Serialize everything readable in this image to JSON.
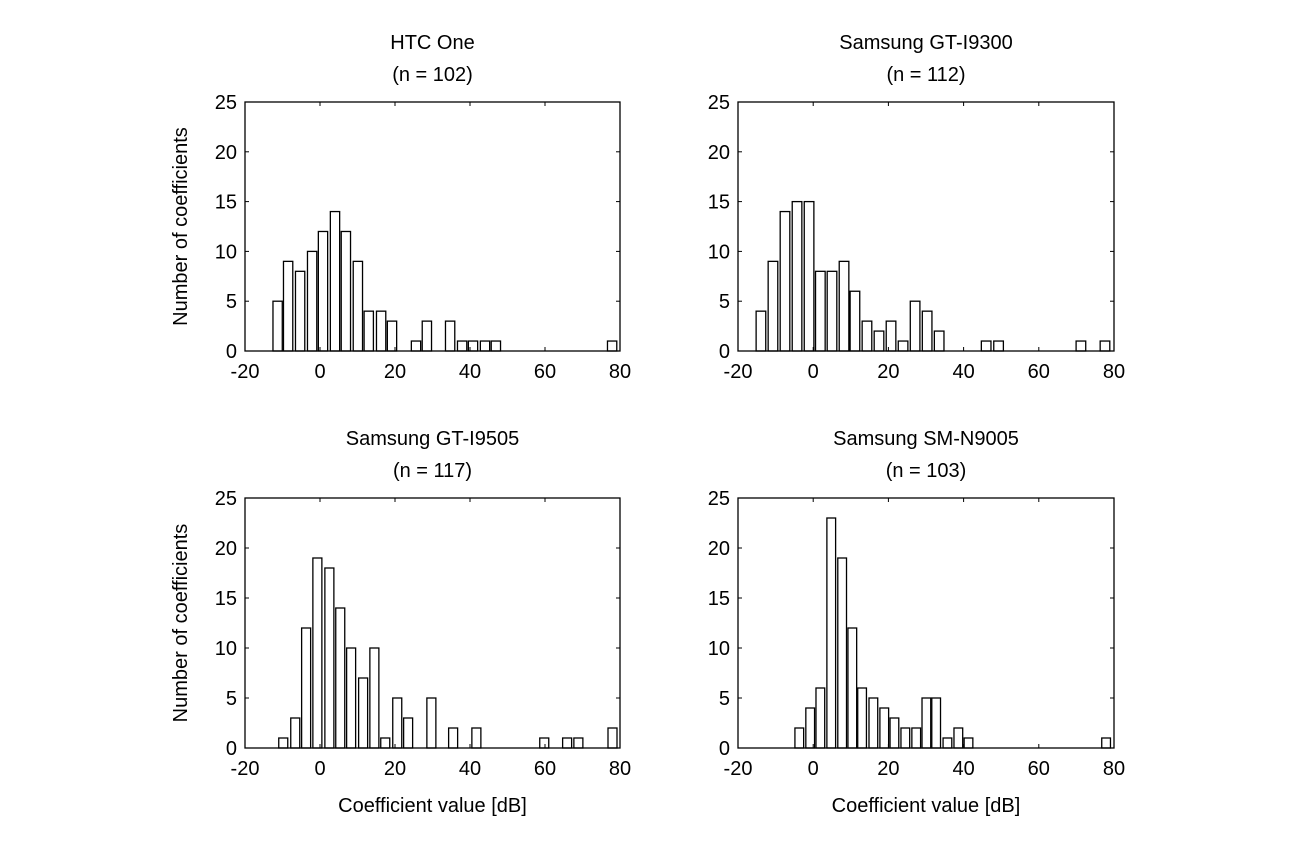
{
  "chart_data": [
    {
      "type": "bar",
      "title": "HTC One",
      "subtitle": "(n = 102)",
      "xlabel": "",
      "ylabel": "Number of coefficients",
      "xlim": [
        -20,
        80
      ],
      "ylim": [
        0,
        25
      ],
      "xticks": [
        "-20",
        "0",
        "20",
        "40",
        "60",
        "80"
      ],
      "yticks": [
        "0",
        "5",
        "10",
        "15",
        "20",
        "25"
      ],
      "bin_width": 3.1,
      "x": [
        -11.3,
        -8.5,
        -5.3,
        -2.1,
        0.8,
        4.0,
        6.9,
        10.1,
        13.0,
        16.3,
        19.2,
        25.6,
        28.5,
        34.7,
        37.9,
        40.8,
        44.0,
        46.9,
        77.9
      ],
      "values": [
        5,
        9,
        8,
        10,
        12,
        14,
        12,
        9,
        4,
        4,
        3,
        1,
        3,
        3,
        1,
        1,
        1,
        1,
        1
      ]
    },
    {
      "type": "bar",
      "title": "Samsung GT-I9300",
      "subtitle": "(n = 112)",
      "xlabel": "",
      "ylabel": "",
      "xlim": [
        -20,
        80
      ],
      "ylim": [
        0,
        25
      ],
      "xticks": [
        "-20",
        "0",
        "20",
        "40",
        "60",
        "80"
      ],
      "yticks": [
        "0",
        "5",
        "10",
        "15",
        "20",
        "25"
      ],
      "bin_width": 3.2,
      "x": [
        -13.9,
        -10.7,
        -7.5,
        -4.3,
        -1.1,
        1.9,
        5.0,
        8.2,
        11.1,
        14.3,
        17.5,
        20.7,
        23.9,
        27.1,
        30.3,
        33.5,
        46.0,
        49.3,
        71.2,
        77.6
      ],
      "values": [
        4,
        9,
        14,
        15,
        15,
        8,
        8,
        9,
        6,
        3,
        2,
        3,
        1,
        5,
        4,
        2,
        1,
        1,
        1,
        1
      ]
    },
    {
      "type": "bar",
      "title": "Samsung GT-I9505",
      "subtitle": "(n = 117)",
      "xlabel": "Coefficient value [dB]",
      "ylabel": "Number of coefficients",
      "xlim": [
        -20,
        80
      ],
      "ylim": [
        0,
        25
      ],
      "xticks": [
        "-20",
        "0",
        "20",
        "40",
        "60",
        "80"
      ],
      "yticks": [
        "0",
        "5",
        "10",
        "15",
        "20",
        "25"
      ],
      "bin_width": 3.0,
      "x": [
        -9.8,
        -6.6,
        -3.7,
        -0.7,
        2.5,
        5.4,
        8.3,
        11.5,
        14.5,
        17.4,
        20.6,
        23.5,
        29.7,
        35.5,
        41.7,
        59.8,
        65.9,
        68.9,
        78.0
      ],
      "values": [
        1,
        3,
        12,
        19,
        18,
        14,
        10,
        7,
        10,
        1,
        5,
        3,
        5,
        2,
        2,
        1,
        1,
        1,
        2
      ]
    },
    {
      "type": "bar",
      "title": "Samsung SM-N9005",
      "subtitle": "(n = 103)",
      "xlabel": "Coefficient value [dB]",
      "ylabel": "",
      "xlim": [
        -20,
        80
      ],
      "ylim": [
        0,
        25
      ],
      "xticks": [
        "-20",
        "0",
        "20",
        "40",
        "60",
        "80"
      ],
      "yticks": [
        "0",
        "5",
        "10",
        "15",
        "20",
        "25"
      ],
      "bin_width": 2.9,
      "x": [
        -3.7,
        -0.8,
        1.9,
        4.8,
        7.7,
        10.4,
        13.0,
        16.0,
        18.9,
        21.6,
        24.5,
        27.4,
        30.1,
        32.7,
        35.7,
        38.6,
        41.3,
        77.9
      ],
      "values": [
        2,
        4,
        6,
        23,
        19,
        12,
        6,
        5,
        4,
        3,
        2,
        2,
        5,
        5,
        1,
        2,
        1,
        1
      ]
    }
  ]
}
